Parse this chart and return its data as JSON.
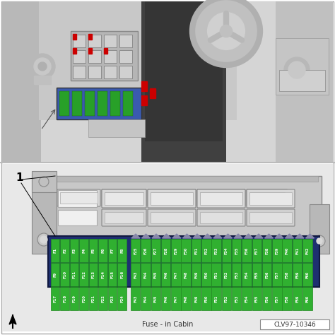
{
  "bg_color": "#ffffff",
  "border_color": "#999999",
  "title_text": "Fuse - in Cabin",
  "ref_code": "CLV97-10346",
  "dash_bg": "#d8d8d8",
  "dash_dark": "#b0b0b0",
  "dash_mid": "#c0c0c0",
  "fuse_panel_bg": "#1e3070",
  "fuse_green": "#30b030",
  "fuse_dark_green": "#228822",
  "fuse_text": "#ffffff",
  "relay_bg": "#c8c8c8",
  "relay_inner": "#e0e0e0",
  "relay_border": "#999999",
  "bracket_bg": "#c0c0c0",
  "bracket_dark": "#a0a0a0",
  "blue_fuse_box": "#4a6abf",
  "red_mark": "#cc0000",
  "label_1": "1",
  "left_fuses_r1": [
    "F1",
    "F2",
    "F3",
    "F4",
    "F5",
    "F6",
    "F7",
    "F8"
  ],
  "left_fuses_r2": [
    "F9",
    "F10",
    "F11",
    "F12",
    "F13",
    "F14",
    "F15",
    "F16"
  ],
  "left_fuses_r3": [
    "F17",
    "F18",
    "F19",
    "F20",
    "F21",
    "F22",
    "F23",
    "F24"
  ],
  "right_fuses_r1": [
    "F25",
    "F26",
    "F27",
    "F28",
    "F29",
    "F30",
    "F31",
    "F32",
    "F33",
    "F34",
    "F35",
    "F36",
    "F37",
    "F38",
    "F39",
    "F40",
    "F41",
    "F42"
  ],
  "right_fuses_r2": [
    "F43",
    "F44",
    "F45",
    "F46",
    "F47",
    "F48",
    "F49",
    "F50",
    "F51",
    "F52",
    "F53",
    "F54",
    "F55",
    "F56",
    "F57",
    "F58",
    "F59",
    "F60"
  ]
}
